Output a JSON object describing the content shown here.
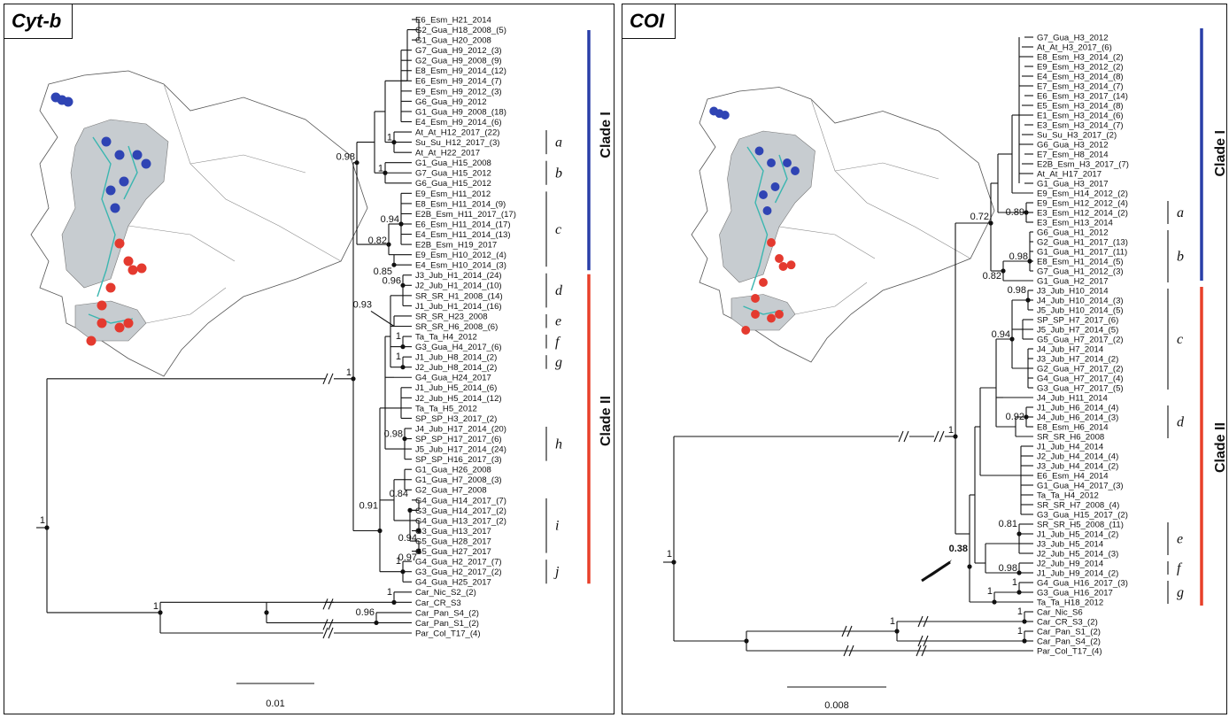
{
  "colors": {
    "clade1": "#2a3fa8",
    "clade2": "#e8402a",
    "region": "#c7ccd0",
    "river": "#3bb6b0",
    "marker_blue": "#2f44b4",
    "marker_red": "#e43a2f"
  },
  "cytb": {
    "title": "Cyt-b",
    "tips": [
      "E6_Esm_H21_2014",
      "G2_Gua_H18_2008_(5)",
      "G1_Gua_H20_2008",
      "G7_Gua_H9_2012_(3)",
      "G2_Gua_H9_2008_(9)",
      "E8_Esm_H9_2014_(12)",
      "E6_Esm_H9_2014_(7)",
      "E9_Esm_H9_2012_(3)",
      "G6_Gua_H9_2012",
      "G1_Gua_H9_2008_(18)",
      "E4_Esm_H9_2014_(6)",
      "At_At_H12_2017_(22)",
      "Su_Su_H12_2017_(3)",
      "At_At_H22_2017",
      "G1_Gua_H15_2008",
      "G7_Gua_H15_2012",
      "G6_Gua_H15_2012",
      "E9_Esm_H11_2012",
      "E8_Esm_H11_2014_(9)",
      "E2B_Esm_H11_2017_(17)",
      "E6_Esm_H11_2014_(17)",
      "E4_Esm_H11_2014_(13)",
      "E2B_Esm_H19_2017",
      "E9_Esm_H10_2012_(4)",
      "E4_Esm_H10_2014_(3)",
      "J3_Jub_H1_2014_(24)",
      "J2_Jub_H1_2014_(10)",
      "SR_SR_H1_2008_(14)",
      "J1_Jub_H1_2014_(16)",
      "SR_SR_H23_2008",
      "SR_SR_H6_2008_(6)",
      "Ta_Ta_H4_2012",
      "G3_Gua_H4_2017_(6)",
      "J1_Jub_H8_2014_(2)",
      "J2_Jub_H8_2014_(2)",
      "G4_Gua_H24_2017",
      "J1_Jub_H5_2014_(6)",
      "J2_Jub_H5_2014_(12)",
      "Ta_Ta_H5_2012",
      "SP_SP_H3_2017_(2)",
      "J4_Jub_H17_2014_(20)",
      "SP_SP_H17_2017_(6)",
      "J5_Jub_H17_2014_(24)",
      "SP_SP_H16_2017_(3)",
      "G1_Gua_H26_2008",
      "G1_Gua_H7_2008_(3)",
      "G2_Gua_H7_2008",
      "G4_Gua_H14_2017_(7)",
      "G3_Gua_H14_2017_(2)",
      "G4_Gua_H13_2017_(2)",
      "G3_Gua_H13_2017",
      "G5_Gua_H28_2017",
      "G5_Gua_H27_2017",
      "G4_Gua_H2_2017_(7)",
      "G3_Gua_H2_2017_(2)",
      "G4_Gua_H25_2017",
      "Car_Nic_S2_(2)",
      "Car_CR_S3",
      "Car_Pan_S4_(2)",
      "Car_Pan_S1_(2)",
      "Par_Col_T17_(4)"
    ],
    "supports": [
      "1",
      "0.98",
      "1",
      "0.94",
      "0.82",
      "0.85",
      "0.96",
      "0.93",
      "1",
      "1",
      "1",
      "0.98",
      "0.84",
      "0.91",
      "0.94",
      "0.97",
      "1",
      "1",
      "0.96",
      "1"
    ],
    "subclades": [
      "a",
      "b",
      "c",
      "d",
      "e",
      "f",
      "g",
      "h",
      "i",
      "j"
    ],
    "clade_labels": [
      "Clade I",
      "Clade II"
    ],
    "scale_label": "0.01"
  },
  "coi": {
    "title": "COI",
    "tips": [
      "G7_Gua_H3_2012",
      "At_At_H3_2017_(6)",
      "E8_Esm_H3_2014_(2)",
      "E9_Esm_H3_2012_(2)",
      "E4_Esm_H3_2014_(8)",
      "E7_Esm_H3_2014_(7)",
      "E6_Esm_H3_2017_(14)",
      "E5_Esm_H3_2014_(8)",
      "E1_Esm_H3_2014_(6)",
      "E3_Esm_H3_2014_(7)",
      "Su_Su_H3_2017_(2)",
      "G6_Gua_H3_2012",
      "E7_Esm_H8_2014",
      "E2B_Esm_H3_2017_(7)",
      "At_At_H17_2017",
      "G1_Gua_H3_2017",
      "E9_Esm_H14_2012_(2)",
      "E9_Esm_H12_2012_(4)",
      "E3_Esm_H12_2014_(2)",
      "E3_Esm_H13_2014",
      "G6_Gua_H1_2012",
      "G2_Gua_H1_2017_(13)",
      "G1_Gua_H1_2017_(11)",
      "E8_Esm_H1_2014_(5)",
      "G7_Gua_H1_2012_(3)",
      "G1_Gua_H2_2017",
      "J3_Jub_H10_2014",
      "J4_Jub_H10_2014_(3)",
      "J5_Jub_H10_2014_(5)",
      "SP_SP_H7_2017_(6)",
      "J5_Jub_H7_2014_(5)",
      "G5_Gua_H7_2017_(2)",
      "J4_Jub_H7_2014",
      "J3_Jub_H7_2014_(2)",
      "G2_Gua_H7_2017_(2)",
      "G4_Gua_H7_2017_(4)",
      "G3_Gua_H7_2017_(5)",
      "J4_Jub_H11_2014",
      "J1_Jub_H6_2014_(4)",
      "J4_Jub_H6_2014_(3)",
      "E8_Esm_H6_2014",
      "SR_SR_H6_2008",
      "J1_Jub_H4_2014",
      "J2_Jub_H4_2014_(4)",
      "J3_Jub_H4_2014_(2)",
      "E6_Esm_H4_2014",
      "G1_Gua_H4_2017_(3)",
      "Ta_Ta_H4_2012",
      "SR_SR_H7_2008_(4)",
      "G3_Gua_H15_2017_(2)",
      "SR_SR_H5_2008_(11)",
      "J1_Jub_H5_2014_(2)",
      "J3_Jub_H5_2014",
      "J2_Jub_H5_2014_(3)",
      "J2_Jub_H9_2014",
      "J1_Jub_H9_2014_(2)",
      "G4_Gua_H16_2017_(3)",
      "G3_Gua_H16_2017",
      "Ta_Ta_H18_2012",
      "Car_Nic_S6",
      "Car_CR_S3_(2)",
      "Car_Pan_S1_(2)",
      "Car_Pan_S4_(2)",
      "Par_Col_T17_(4)"
    ],
    "supports": [
      "0.72",
      "0.89",
      "0.98",
      "0.82",
      "0.98",
      "0.94",
      "0.92",
      "1",
      "0.81",
      "0.98",
      "1",
      "1",
      "1",
      "1"
    ],
    "bold_support": "0.38",
    "subclades": [
      "a",
      "b",
      "c",
      "d",
      "e",
      "f",
      "g"
    ],
    "clade_labels": [
      "Clade I",
      "Clade II"
    ],
    "scale_label": "0.008"
  }
}
